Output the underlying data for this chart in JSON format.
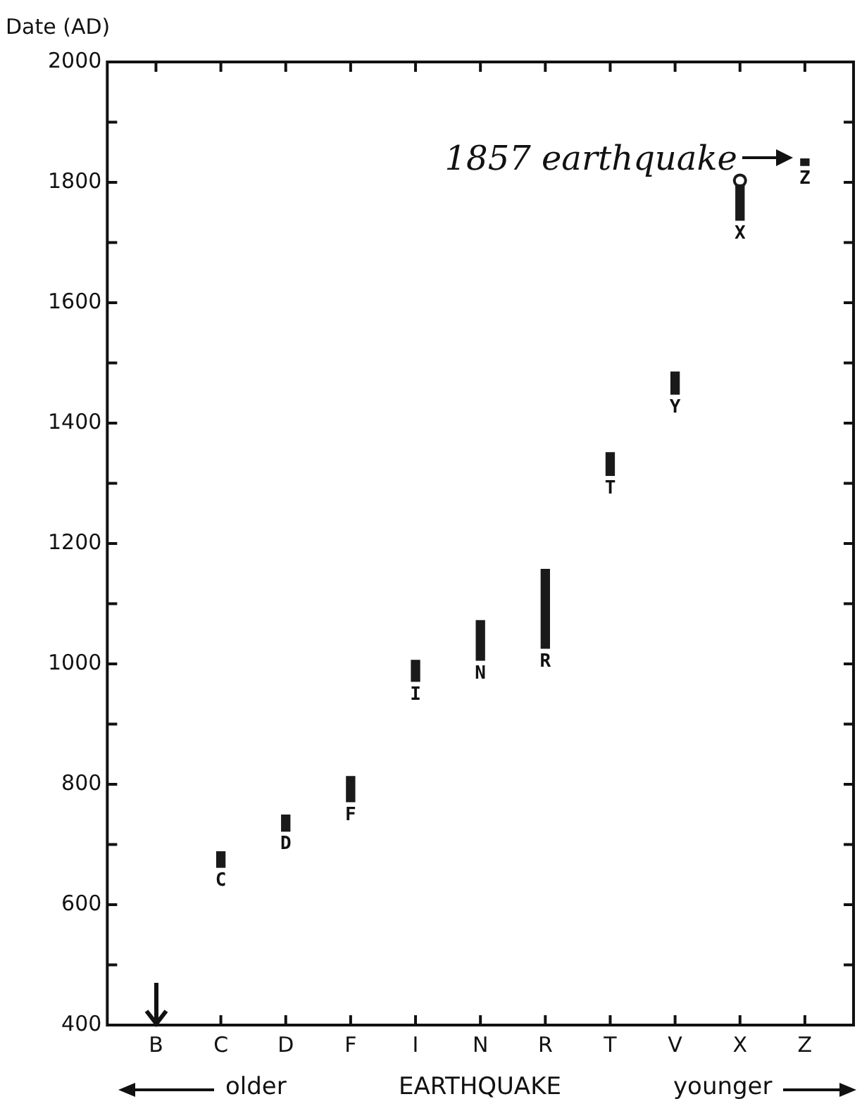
{
  "chart_data": {
    "type": "bar",
    "ylabel": "Date (AD)",
    "xlabel": "EARTHQUAKE",
    "categories": [
      "B",
      "C",
      "D",
      "F",
      "I",
      "N",
      "R",
      "T",
      "V",
      "X",
      "Z"
    ],
    "series": [
      {
        "color": "#1a1a1a",
        "base": [
          null,
          662,
          722,
          771,
          971,
          1006,
          1026,
          1313,
          1448,
          1737,
          1828
        ],
        "values": [
          null,
          26,
          27,
          42,
          35,
          66,
          131,
          38,
          37,
          59,
          11
        ]
      },
      {
        "type": "scatter",
        "color": "#1a1a1a",
        "marker": "circle",
        "x": [
          "X"
        ],
        "values": [
          1803
        ]
      }
    ],
    "ylim": [
      400,
      2000
    ],
    "yticks": [
      400,
      {
        "value": 500,
        "label": null
      },
      600,
      {
        "value": 700,
        "label": null
      },
      800,
      {
        "value": 900,
        "label": null
      },
      1000,
      {
        "value": 1100,
        "label": null
      },
      1200,
      {
        "value": 1300,
        "label": null
      },
      1400,
      {
        "value": 1500,
        "label": null
      },
      1600,
      {
        "value": 1700,
        "label": null
      },
      1800,
      {
        "value": 1900,
        "label": null
      },
      2000
    ],
    "grid": false,
    "legend": false,
    "annotations": [
      {
        "text": "C",
        "x": "C",
        "y": 662
      },
      {
        "text": "D",
        "x": "D",
        "y": 722
      },
      {
        "text": "F",
        "x": "F",
        "y": 771
      },
      {
        "text": "I",
        "x": "I",
        "y": 971
      },
      {
        "text": "N",
        "x": "N",
        "y": 1006
      },
      {
        "text": "R",
        "x": "R",
        "y": 1026
      },
      {
        "text": "T",
        "x": "T",
        "y": 1313
      },
      {
        "text": "Y",
        "x": "V",
        "y": 1448
      },
      {
        "text": "X",
        "x": "X",
        "y": 1737
      },
      {
        "text": "Z",
        "x": "Z",
        "y": 1828
      },
      {
        "text": "1857 earthquake",
        "x": "Z",
        "y": 1840
      },
      "older",
      "younger"
    ]
  }
}
